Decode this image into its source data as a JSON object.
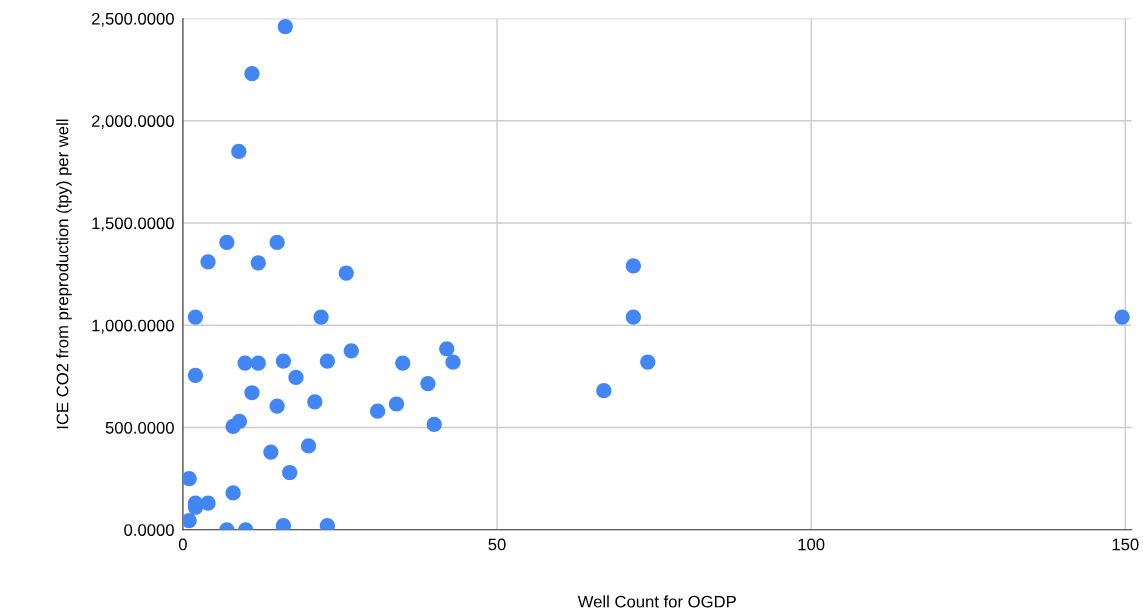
{
  "chart_data": {
    "type": "scatter",
    "xlabel": "Well Count for OGDP",
    "ylabel": "ICE CO2 from preproduction (tpy) per well",
    "xlim": [
      0,
      151
    ],
    "xticks": [
      0,
      50,
      100,
      150
    ],
    "ylim": [
      0,
      2500
    ],
    "yticks": [
      {
        "value": 0,
        "label": "0.0000"
      },
      {
        "value": 500,
        "label": "500.0000"
      },
      {
        "value": 1000,
        "label": "1,000.0000"
      },
      {
        "value": 1500,
        "label": "1,500.0000"
      },
      {
        "value": 2000,
        "label": "2,000.0000"
      },
      {
        "value": 2500,
        "label": "2,500.0000"
      }
    ],
    "grid": true,
    "marker": "circle",
    "series": [
      {
        "color": "#4285f4",
        "x": [
          16.3,
          11,
          8.9,
          7,
          15,
          4,
          12,
          26,
          71.7,
          2,
          22,
          71.7,
          149.5,
          26.8,
          42,
          16,
          9.9,
          12,
          23,
          35,
          43,
          74,
          11,
          18,
          2,
          21,
          15,
          34,
          39,
          31,
          67,
          40,
          9,
          8,
          14,
          20,
          17,
          1,
          8,
          2,
          2,
          4,
          1,
          7,
          10,
          16,
          23
        ],
        "values": [
          2460,
          2230,
          1850,
          1405,
          1405,
          1310,
          1305,
          1255,
          1290,
          1040,
          1040,
          1040,
          1040,
          875,
          885,
          825,
          815,
          815,
          825,
          815,
          820,
          820,
          670,
          745,
          755,
          625,
          605,
          615,
          715,
          580,
          680,
          515,
          530,
          505,
          380,
          410,
          280,
          250,
          180,
          130,
          110,
          130,
          45,
          0,
          0,
          20,
          20
        ]
      }
    ]
  }
}
